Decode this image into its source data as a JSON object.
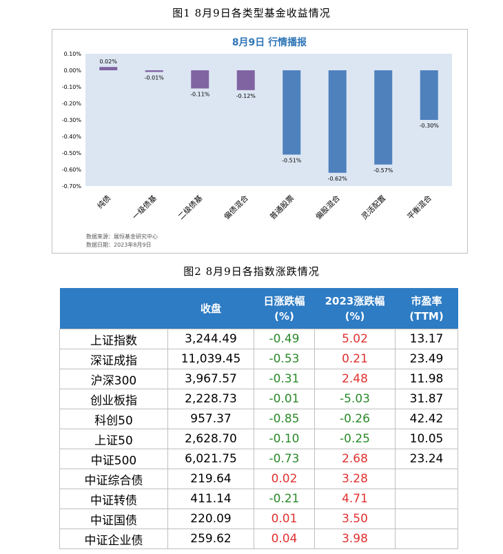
{
  "captions": {
    "figure1": "图1  8月9日各类型基金收益情况",
    "figure2": "图2  8月9日各指数涨跌情况"
  },
  "chart_data": {
    "type": "bar",
    "title": "8月9日  行情播报",
    "categories": [
      "纯债",
      "一级债基",
      "二级债基",
      "偏债混合",
      "普通股票",
      "偏股混合",
      "灵活配置",
      "平衡混合"
    ],
    "values": [
      0.02,
      -0.01,
      -0.11,
      -0.12,
      -0.51,
      -0.62,
      -0.57,
      -0.3
    ],
    "bar_colors": [
      "#8064a2",
      "#8064a2",
      "#8064a2",
      "#8064a2",
      "#4f81bd",
      "#4f81bd",
      "#4f81bd",
      "#4f81bd"
    ],
    "ylim": [
      -0.7,
      0.1
    ],
    "yticks": [
      0.1,
      0.0,
      -0.1,
      -0.2,
      -0.3,
      -0.4,
      -0.5,
      -0.6,
      -0.7
    ],
    "ytick_labels": [
      "0.10%",
      "0.00%",
      "-0.10%",
      "-0.20%",
      "-0.30%",
      "-0.40%",
      "-0.50%",
      "-0.60%",
      "-0.70%"
    ],
    "data_labels": [
      "0.02%",
      "-0.01%",
      "-0.11%",
      "-0.12%",
      "-0.51%",
      "-0.62%",
      "-0.57%",
      "-0.30%"
    ],
    "xlabel": "",
    "ylabel": "",
    "grid": false,
    "plot_bg": "#dce6f2",
    "title_color": "#2e75b6",
    "source_lines": [
      "数据来源：展恒基金研究中心",
      "数据日期：2023年8月9日"
    ]
  },
  "index_table": {
    "headers": [
      {
        "line1": "",
        "line2": ""
      },
      {
        "line1": "收盘",
        "line2": ""
      },
      {
        "line1": "日涨跌幅",
        "line2": "(%)"
      },
      {
        "line1": "2023涨跌幅",
        "line2": "(%)"
      },
      {
        "line1": "市盈率",
        "line2": "(TTM)"
      }
    ],
    "rows": [
      {
        "name": "上证指数",
        "close": "3,244.49",
        "day": "-0.49",
        "ytd": "5.02",
        "pe": "13.17"
      },
      {
        "name": "深证成指",
        "close": "11,039.45",
        "day": "-0.53",
        "ytd": "0.21",
        "pe": "23.49"
      },
      {
        "name": "沪深300",
        "close": "3,967.57",
        "day": "-0.31",
        "ytd": "2.48",
        "pe": "11.98"
      },
      {
        "name": "创业板指",
        "close": "2,228.73",
        "day": "-0.01",
        "ytd": "-5.03",
        "pe": "31.87"
      },
      {
        "name": "科创50",
        "close": "957.37",
        "day": "-0.85",
        "ytd": "-0.26",
        "pe": "42.42"
      },
      {
        "name": "上证50",
        "close": "2,628.70",
        "day": "-0.10",
        "ytd": "-0.25",
        "pe": "10.05"
      },
      {
        "name": "中证500",
        "close": "6,021.75",
        "day": "-0.73",
        "ytd": "2.68",
        "pe": "23.24"
      },
      {
        "name": "中证综合债",
        "close": "219.64",
        "day": "0.02",
        "ytd": "3.28",
        "pe": ""
      },
      {
        "name": "中证转债",
        "close": "411.14",
        "day": "-0.21",
        "ytd": "4.71",
        "pe": ""
      },
      {
        "name": "中证国债",
        "close": "220.09",
        "day": "0.01",
        "ytd": "3.50",
        "pe": ""
      },
      {
        "name": "中证企业债",
        "close": "259.62",
        "day": "0.04",
        "ytd": "3.98",
        "pe": ""
      }
    ]
  }
}
